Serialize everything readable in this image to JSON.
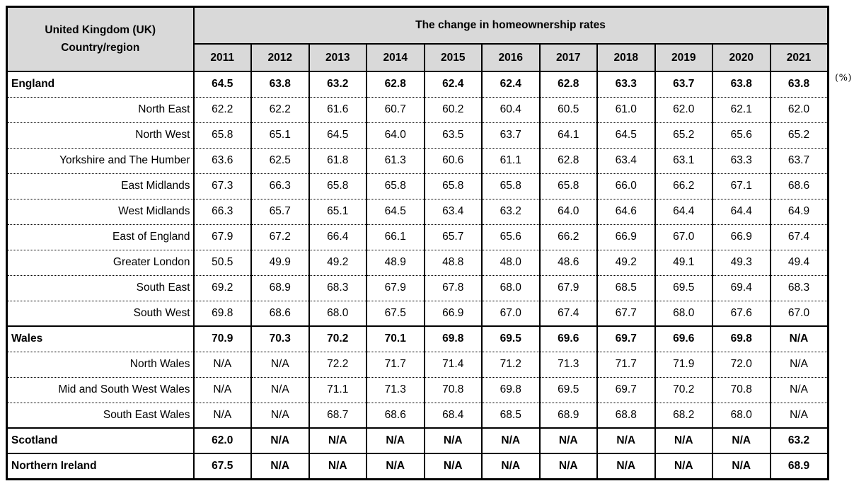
{
  "table_header": {
    "corner_line1": "United Kingdom (UK)",
    "corner_line2": "Country/region",
    "title": "The change in homeownership rates",
    "unit_note": "(%)"
  },
  "colors": {
    "header_bg": "#d9d9d9",
    "border": "#000000",
    "text": "#000000",
    "background": "#ffffff"
  },
  "chart_data": {
    "type": "table",
    "title": "The change in homeownership rates",
    "unit": "%",
    "row_header": "United Kingdom (UK) Country/region",
    "columns": [
      "2011",
      "2012",
      "2013",
      "2014",
      "2015",
      "2016",
      "2017",
      "2018",
      "2019",
      "2020",
      "2021"
    ],
    "rows": [
      {
        "name": "England",
        "level": "country",
        "values": [
          "64.5",
          "63.8",
          "63.2",
          "62.8",
          "62.4",
          "62.4",
          "62.8",
          "63.3",
          "63.7",
          "63.8",
          "63.8"
        ]
      },
      {
        "name": "North East",
        "level": "region",
        "values": [
          "62.2",
          "62.2",
          "61.6",
          "60.7",
          "60.2",
          "60.4",
          "60.5",
          "61.0",
          "62.0",
          "62.1",
          "62.0"
        ]
      },
      {
        "name": "North West",
        "level": "region",
        "values": [
          "65.8",
          "65.1",
          "64.5",
          "64.0",
          "63.5",
          "63.7",
          "64.1",
          "64.5",
          "65.2",
          "65.6",
          "65.2"
        ]
      },
      {
        "name": "Yorkshire and The Humber",
        "level": "region",
        "values": [
          "63.6",
          "62.5",
          "61.8",
          "61.3",
          "60.6",
          "61.1",
          "62.8",
          "63.4",
          "63.1",
          "63.3",
          "63.7"
        ]
      },
      {
        "name": "East Midlands",
        "level": "region",
        "values": [
          "67.3",
          "66.3",
          "65.8",
          "65.8",
          "65.8",
          "65.8",
          "65.8",
          "66.0",
          "66.2",
          "67.1",
          "68.6"
        ]
      },
      {
        "name": "West Midlands",
        "level": "region",
        "values": [
          "66.3",
          "65.7",
          "65.1",
          "64.5",
          "63.4",
          "63.2",
          "64.0",
          "64.6",
          "64.4",
          "64.4",
          "64.9"
        ]
      },
      {
        "name": "East of England",
        "level": "region",
        "values": [
          "67.9",
          "67.2",
          "66.4",
          "66.1",
          "65.7",
          "65.6",
          "66.2",
          "66.9",
          "67.0",
          "66.9",
          "67.4"
        ]
      },
      {
        "name": "Greater London",
        "level": "region",
        "values": [
          "50.5",
          "49.9",
          "49.2",
          "48.9",
          "48.8",
          "48.0",
          "48.6",
          "49.2",
          "49.1",
          "49.3",
          "49.4"
        ]
      },
      {
        "name": "South East",
        "level": "region",
        "values": [
          "69.2",
          "68.9",
          "68.3",
          "67.9",
          "67.8",
          "68.0",
          "67.9",
          "68.5",
          "69.5",
          "69.4",
          "68.3"
        ]
      },
      {
        "name": "South West",
        "level": "region",
        "values": [
          "69.8",
          "68.6",
          "68.0",
          "67.5",
          "66.9",
          "67.0",
          "67.4",
          "67.7",
          "68.0",
          "67.6",
          "67.0"
        ]
      },
      {
        "name": "Wales",
        "level": "country",
        "values": [
          "70.9",
          "70.3",
          "70.2",
          "70.1",
          "69.8",
          "69.5",
          "69.6",
          "69.7",
          "69.6",
          "69.8",
          "N/A"
        ]
      },
      {
        "name": "North Wales",
        "level": "region",
        "values": [
          "N/A",
          "N/A",
          "72.2",
          "71.7",
          "71.4",
          "71.2",
          "71.3",
          "71.7",
          "71.9",
          "72.0",
          "N/A"
        ]
      },
      {
        "name": "Mid and South West Wales",
        "level": "region",
        "values": [
          "N/A",
          "N/A",
          "71.1",
          "71.3",
          "70.8",
          "69.8",
          "69.5",
          "69.7",
          "70.2",
          "70.8",
          "N/A"
        ]
      },
      {
        "name": "South East Wales",
        "level": "region",
        "values": [
          "N/A",
          "N/A",
          "68.7",
          "68.6",
          "68.4",
          "68.5",
          "68.9",
          "68.8",
          "68.2",
          "68.0",
          "N/A"
        ]
      },
      {
        "name": "Scotland",
        "level": "country",
        "values": [
          "62.0",
          "N/A",
          "N/A",
          "N/A",
          "N/A",
          "N/A",
          "N/A",
          "N/A",
          "N/A",
          "N/A",
          "63.2"
        ]
      },
      {
        "name": "Northern Ireland",
        "level": "country",
        "values": [
          "67.5",
          "N/A",
          "N/A",
          "N/A",
          "N/A",
          "N/A",
          "N/A",
          "N/A",
          "N/A",
          "N/A",
          "68.9"
        ]
      }
    ]
  }
}
